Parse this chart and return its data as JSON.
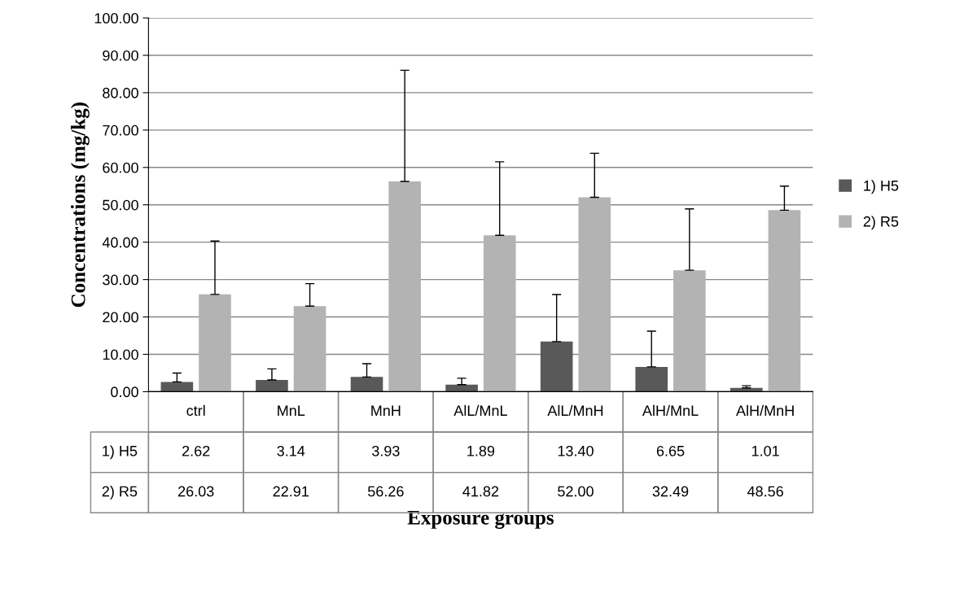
{
  "chart_data": {
    "type": "bar",
    "xlabel": "Exposure groups",
    "ylabel": "Concentrations (mg/kg)",
    "categories": [
      "ctrl",
      "MnL",
      "MnH",
      "AlL/MnL",
      "AlL/MnH",
      "AlH/MnL",
      "AlH/MnH"
    ],
    "series": [
      {
        "name": "1) H5",
        "color": "#595959",
        "values": [
          2.62,
          3.14,
          3.93,
          1.89,
          13.4,
          6.65,
          1.01
        ],
        "value_labels": [
          "2.62",
          "3.14",
          "3.93",
          "1.89",
          "13.40",
          "6.65",
          "1.01"
        ],
        "errors": [
          [
            2.62,
            5.0
          ],
          [
            3.14,
            6.1
          ],
          [
            3.93,
            7.5
          ],
          [
            1.89,
            3.6
          ],
          [
            13.4,
            26.0
          ],
          [
            6.65,
            16.2
          ],
          [
            1.01,
            1.6
          ]
        ]
      },
      {
        "name": "2) R5",
        "color": "#b3b3b3",
        "values": [
          26.03,
          22.91,
          56.26,
          41.82,
          52.0,
          32.49,
          48.56
        ],
        "value_labels": [
          "26.03",
          "22.91",
          "56.26",
          "41.82",
          "52.00",
          "32.49",
          "48.56"
        ],
        "errors": [
          [
            26.03,
            40.3
          ],
          [
            22.91,
            28.9
          ],
          [
            56.26,
            86.0
          ],
          [
            41.82,
            61.5
          ],
          [
            52.0,
            63.8
          ],
          [
            32.49,
            48.9
          ],
          [
            48.56,
            55.0
          ]
        ]
      }
    ],
    "ylim": [
      0,
      100
    ],
    "yticks": [
      {
        "value": 0,
        "label": "0.00"
      },
      {
        "value": 10,
        "label": "10.00"
      },
      {
        "value": 20,
        "label": "20.00"
      },
      {
        "value": 30,
        "label": "30.00"
      },
      {
        "value": 40,
        "label": "40.00"
      },
      {
        "value": 50,
        "label": "50.00"
      },
      {
        "value": 60,
        "label": "60.00"
      },
      {
        "value": 70,
        "label": "70.00"
      },
      {
        "value": 80,
        "label": "80.00"
      },
      {
        "value": 90,
        "label": "90.00"
      },
      {
        "value": 100,
        "label": "100.00"
      }
    ],
    "grid": "y",
    "legend": "right"
  }
}
